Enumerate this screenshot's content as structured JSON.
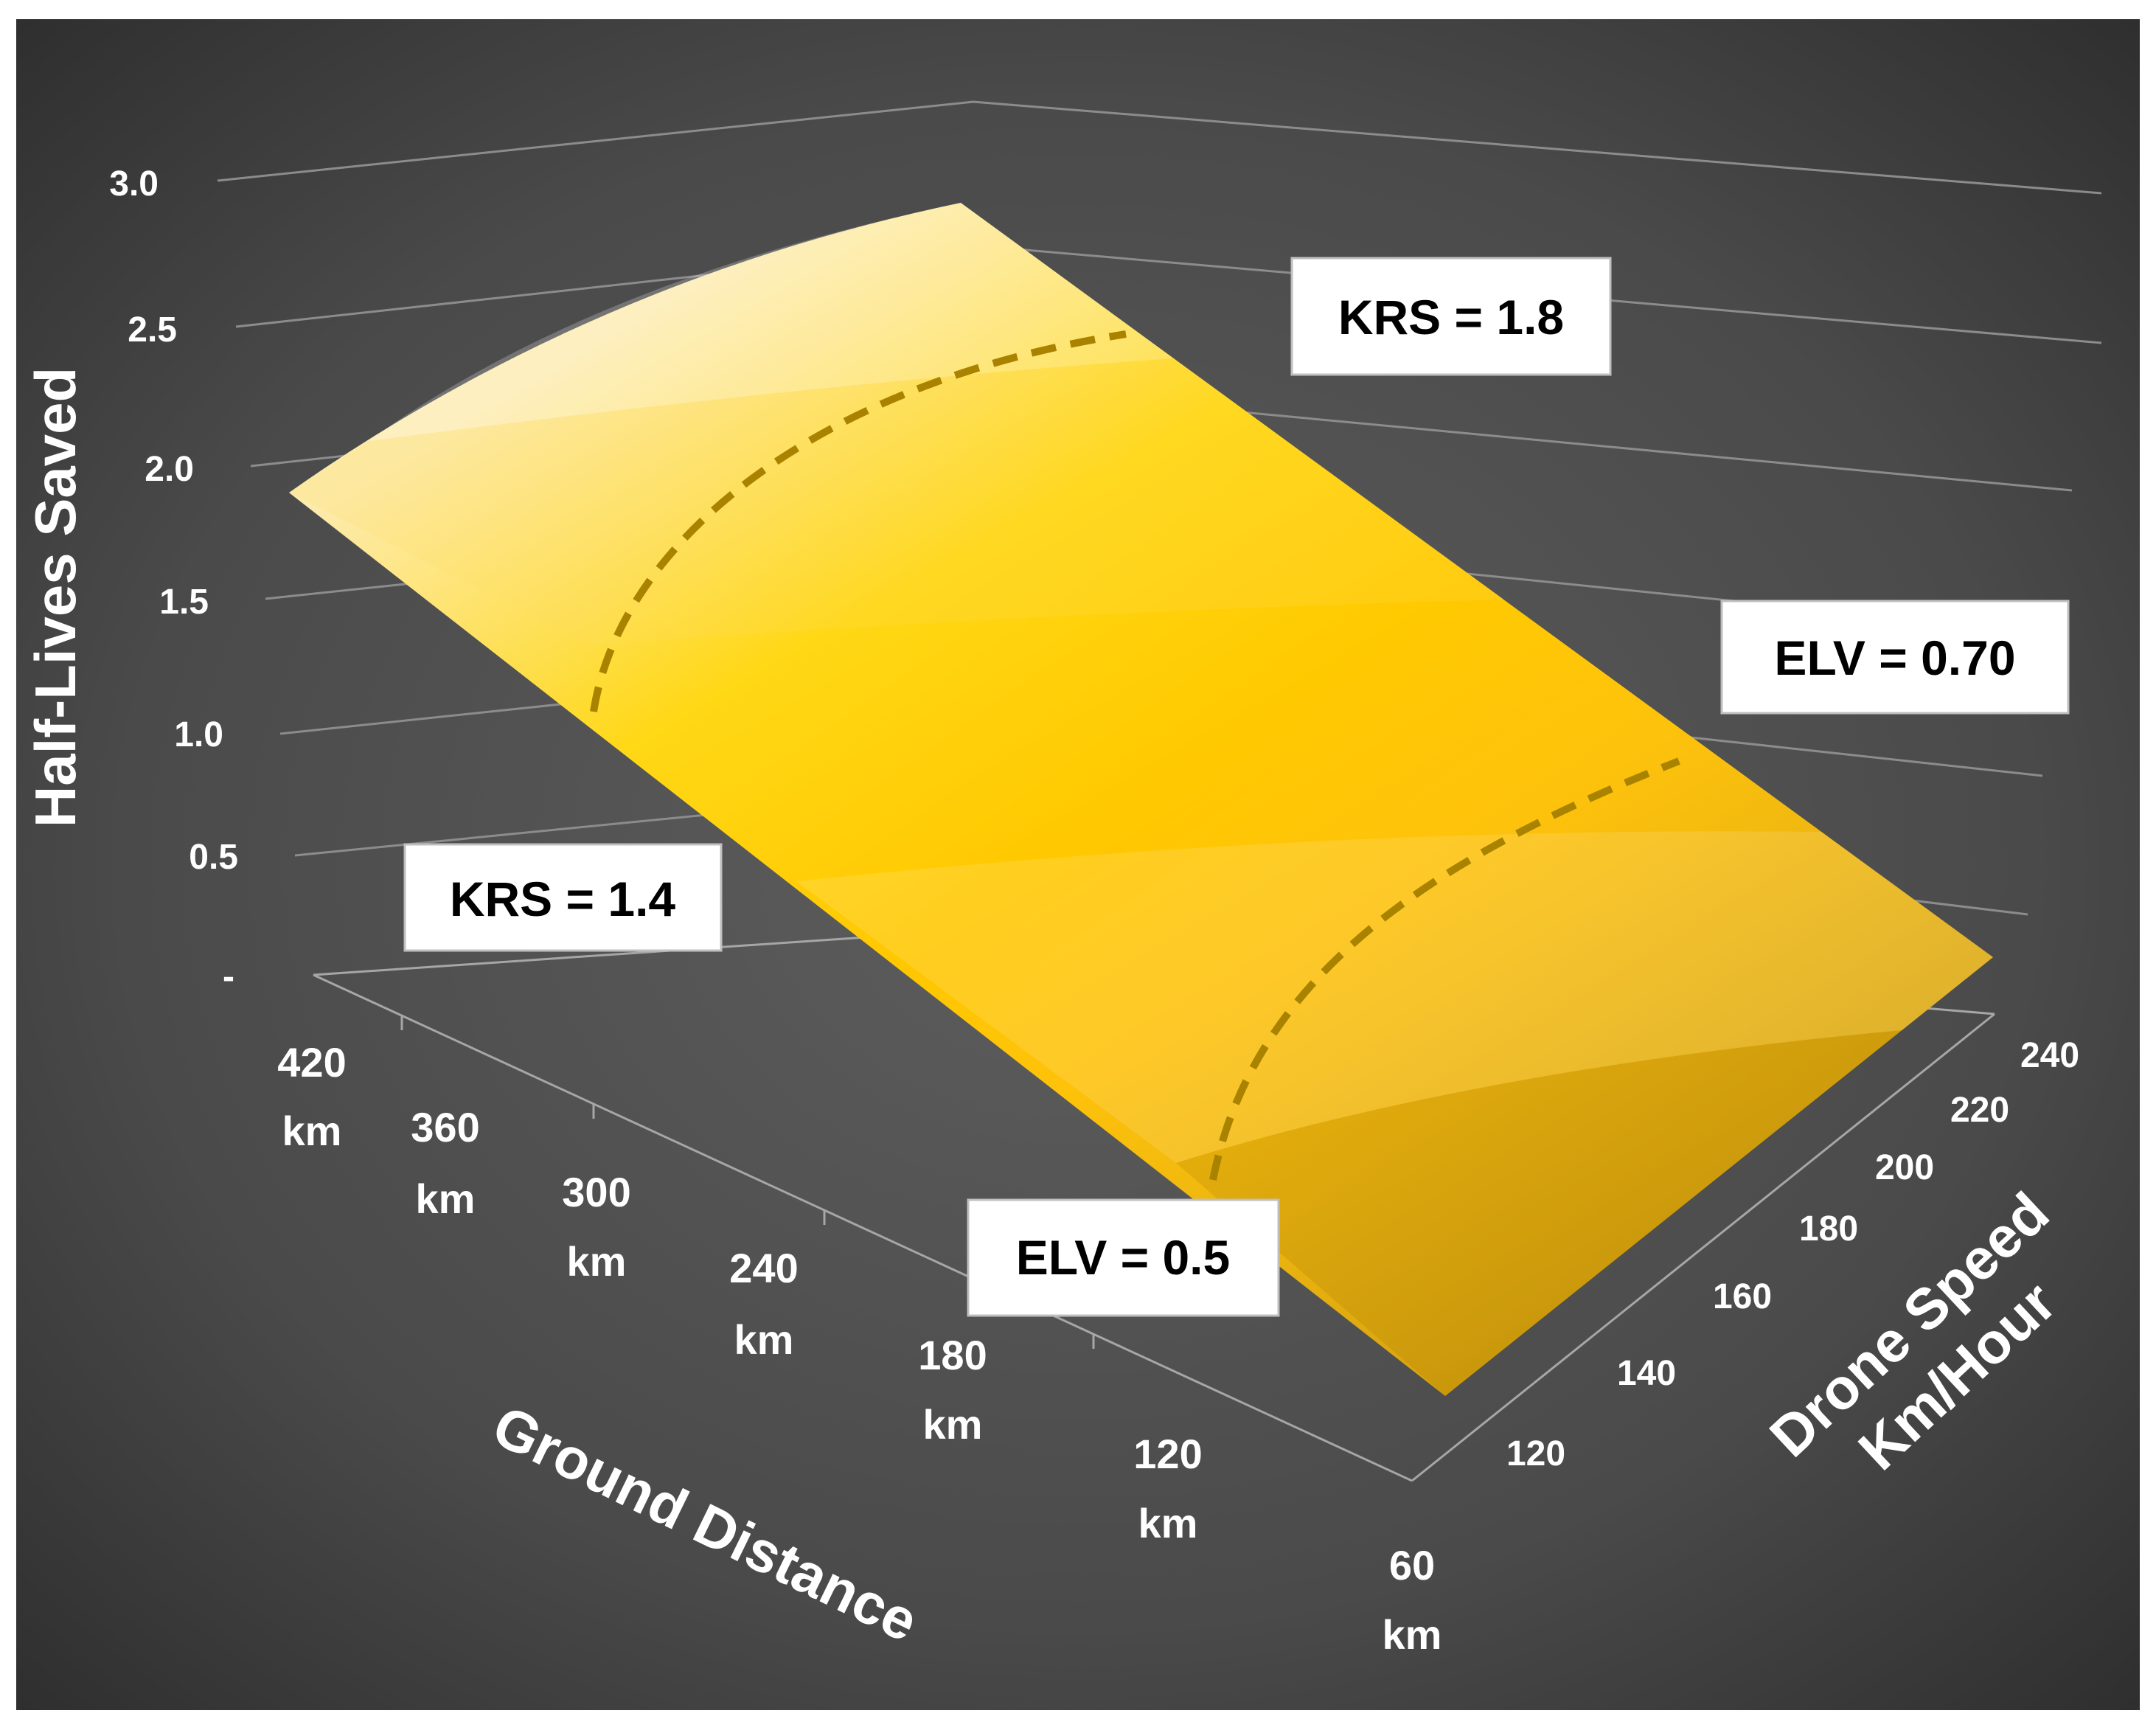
{
  "chart_data": {
    "type": "surface",
    "zlabel": "Half-Lives Saved",
    "xlabel": "Ground Distance",
    "ylabel_line1": "Drone Speed",
    "ylabel_line2": "Km/Hour",
    "z_ticks": [
      "3.0",
      "2.5",
      "2.0",
      "1.5",
      "1.0",
      "0.5",
      "-"
    ],
    "zlim": [
      0,
      3.0
    ],
    "x_ticks": [
      {
        "value": "420",
        "unit": "km"
      },
      {
        "value": "360",
        "unit": "km"
      },
      {
        "value": "300",
        "unit": "km"
      },
      {
        "value": "240",
        "unit": "km"
      },
      {
        "value": "180",
        "unit": "km"
      },
      {
        "value": "120",
        "unit": "km"
      },
      {
        "value": "60",
        "unit": "km"
      }
    ],
    "y_ticks": [
      "120",
      "140",
      "160",
      "180",
      "200",
      "220",
      "240"
    ],
    "corner_values": {
      "at_420km_120kmh": 1.9,
      "at_420km_240kmh": 2.9,
      "at_60km_120kmh": 0.05,
      "at_60km_240kmh": 0.3
    },
    "annotations": [
      {
        "label": "KRS = 1.8"
      },
      {
        "label": "KRS = 1.4"
      },
      {
        "label": "ELV = 0.70"
      },
      {
        "label": "ELV = 0.5"
      }
    ],
    "colors": {
      "background_outer": "#2a2a2a",
      "background_inner": "#5e5e5e",
      "surface_light": "#fde79c",
      "surface_mid": "#ffc000",
      "surface_dark": "#d79f00",
      "dashed_line": "#a98200"
    },
    "grid": true
  }
}
